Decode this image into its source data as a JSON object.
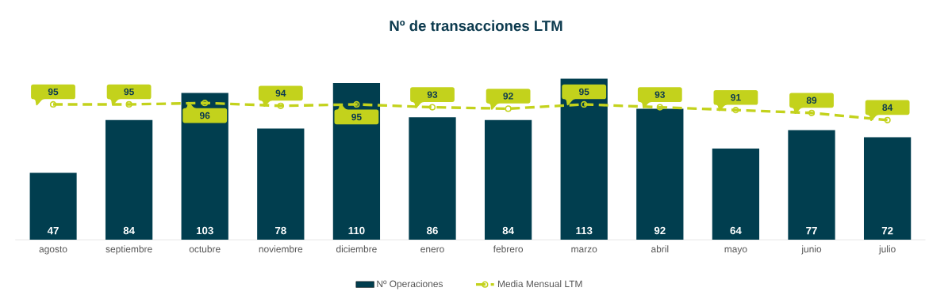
{
  "chart_data": {
    "type": "bar",
    "title": "Nº de transacciones LTM",
    "categories": [
      "agosto",
      "septiembre",
      "octubre",
      "noviembre",
      "diciembre",
      "enero",
      "febrero",
      "marzo",
      "abril",
      "mayo",
      "junio",
      "julio"
    ],
    "series": [
      {
        "name": "Nº Operaciones",
        "color": "#013e4f",
        "values": [
          47,
          84,
          103,
          78,
          110,
          86,
          84,
          113,
          92,
          64,
          77,
          72
        ]
      },
      {
        "name": "Media Mensual LTM",
        "type": "line",
        "color": "#c3d21c",
        "marker": "circle",
        "line_style": "dashed",
        "values": [
          95,
          95,
          96,
          94,
          95,
          93,
          92,
          95,
          93,
          91,
          89,
          84
        ]
      }
    ],
    "data_labels": true,
    "legend": "bottom",
    "tick_labels": "x"
  }
}
